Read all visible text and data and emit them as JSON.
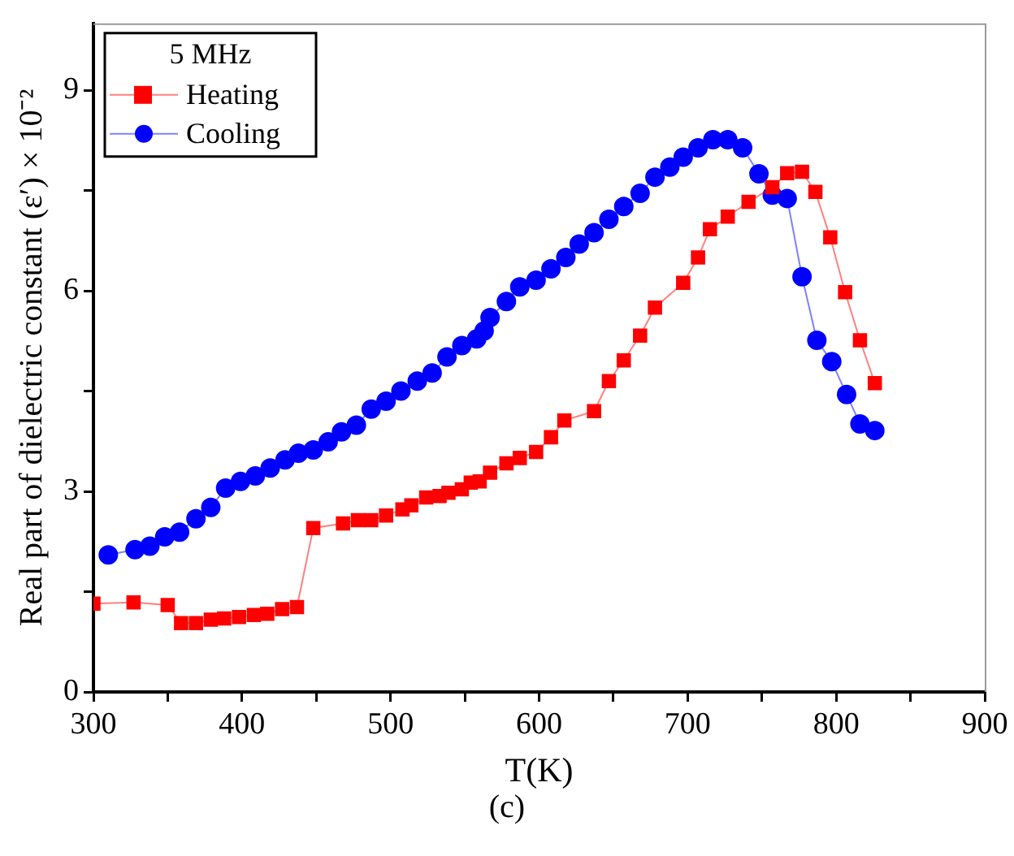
{
  "chart_data": {
    "type": "line",
    "xlabel": "T(K)",
    "ylabel": "Real part of dielectric constant (ε′) × 10⁻²",
    "legend_title": "5 MHz",
    "legend": "top left",
    "grid": false,
    "xlim": [
      300,
      900
    ],
    "xticks": [
      300,
      {
        "value": 350,
        "label": null
      },
      400,
      {
        "value": 450,
        "label": null
      },
      500,
      {
        "value": 550,
        "label": null
      },
      600,
      {
        "value": 650,
        "label": null
      },
      700,
      {
        "value": 750,
        "label": null
      },
      800,
      {
        "value": 850,
        "label": null
      },
      900
    ],
    "ylim": [
      0,
      10
    ],
    "yticks": [
      0,
      {
        "value": 1.5,
        "label": null
      },
      3,
      {
        "value": 4.5,
        "label": null
      },
      6,
      {
        "value": 7.5,
        "label": null
      },
      9
    ],
    "annotations": [
      "(c)"
    ],
    "series": [
      {
        "name": "Heating",
        "color": "#ff0000",
        "marker": "square",
        "x": [
          300,
          327,
          350,
          359,
          369,
          379,
          388,
          398,
          408,
          417,
          427,
          437,
          448,
          468,
          478,
          487,
          497,
          508,
          514,
          524,
          533,
          539,
          548,
          554,
          560,
          567,
          578,
          587,
          598,
          608,
          617,
          637,
          647,
          657,
          668,
          678,
          697,
          707,
          715,
          727,
          741,
          757,
          767,
          777,
          786,
          796,
          806,
          816,
          826
        ],
        "values": [
          1.32,
          1.34,
          1.3,
          1.03,
          1.03,
          1.08,
          1.1,
          1.12,
          1.15,
          1.17,
          1.24,
          1.27,
          2.45,
          2.52,
          2.57,
          2.57,
          2.64,
          2.73,
          2.79,
          2.91,
          2.93,
          2.98,
          3.03,
          3.13,
          3.15,
          3.28,
          3.42,
          3.5,
          3.59,
          3.81,
          4.06,
          4.2,
          4.65,
          4.96,
          5.33,
          5.75,
          6.12,
          6.5,
          6.92,
          7.11,
          7.33,
          7.55,
          7.76,
          7.78,
          7.48,
          6.8,
          5.98,
          5.26,
          4.62
        ]
      },
      {
        "name": "Cooling",
        "color": "#0000ff",
        "marker": "circle",
        "x": [
          310,
          328,
          338,
          348,
          358,
          369,
          379,
          389,
          399,
          409,
          419,
          429,
          438,
          448,
          458,
          467,
          477,
          487,
          497,
          507,
          518,
          528,
          538,
          548,
          558,
          563,
          567,
          578,
          587,
          598,
          608,
          618,
          627,
          637,
          647,
          657,
          668,
          678,
          688,
          697,
          707,
          717,
          727,
          737,
          748,
          757,
          767,
          777,
          787,
          797,
          807,
          816,
          826
        ],
        "values": [
          2.05,
          2.13,
          2.18,
          2.32,
          2.39,
          2.59,
          2.76,
          3.05,
          3.15,
          3.23,
          3.35,
          3.47,
          3.57,
          3.62,
          3.74,
          3.89,
          3.99,
          4.23,
          4.35,
          4.5,
          4.65,
          4.77,
          5.01,
          5.18,
          5.28,
          5.4,
          5.6,
          5.84,
          6.06,
          6.16,
          6.33,
          6.5,
          6.7,
          6.87,
          7.07,
          7.26,
          7.46,
          7.7,
          7.85,
          8.0,
          8.14,
          8.26,
          8.26,
          8.14,
          7.75,
          7.43,
          7.38,
          6.21,
          5.26,
          4.94,
          4.45,
          4.01,
          3.91
        ]
      }
    ]
  }
}
